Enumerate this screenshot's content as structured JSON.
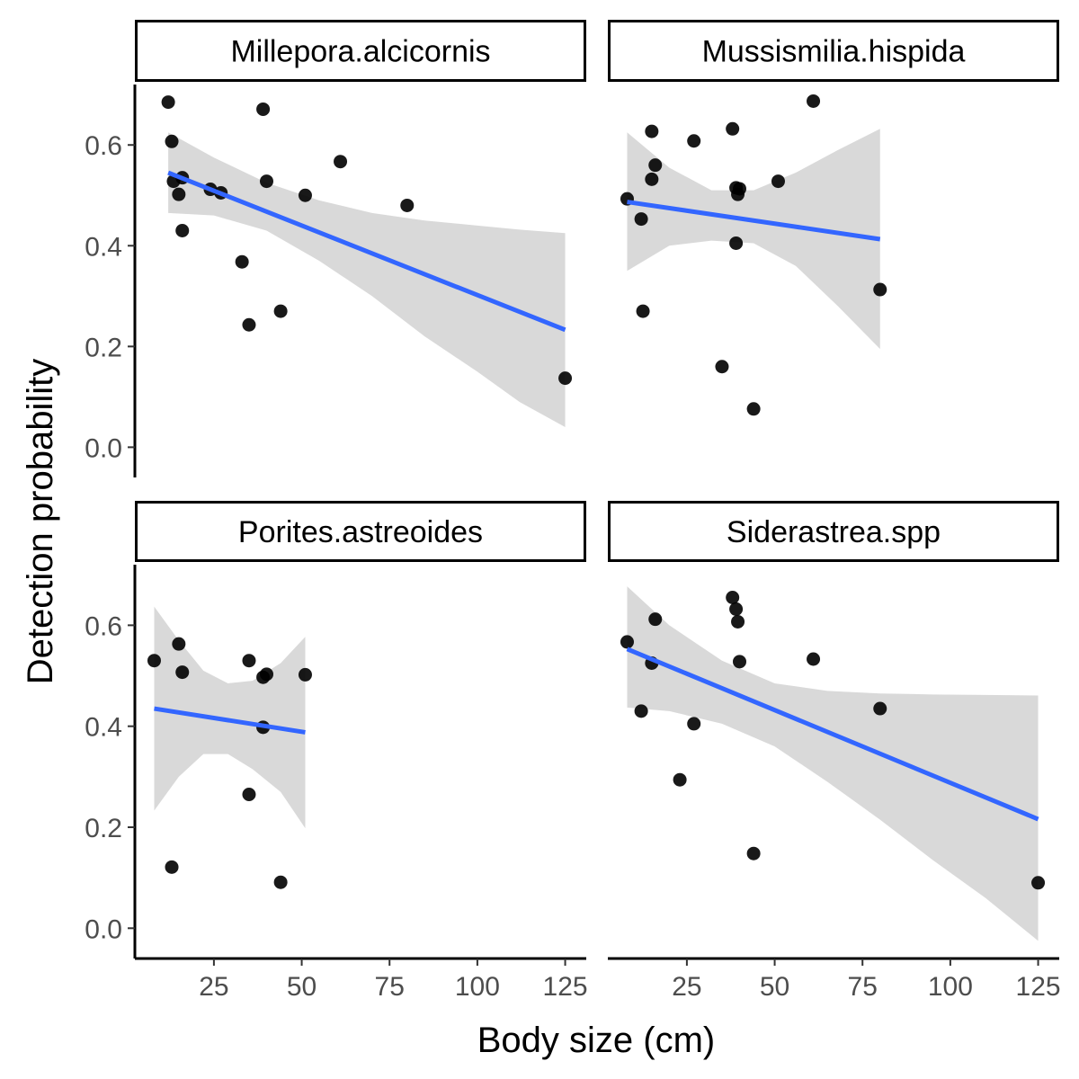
{
  "chart_data": {
    "type": "scatter",
    "layout": "facet-grid 2x2",
    "xlabel": "Body size (cm)",
    "ylabel": "Detection probability",
    "xlim": [
      2.5,
      131
    ],
    "ylim": [
      -0.06,
      0.72
    ],
    "x_ticks": [
      25,
      50,
      75,
      100,
      125
    ],
    "x_tick_labels": [
      "25",
      "50",
      "75",
      "100",
      "125"
    ],
    "y_ticks": [
      0.0,
      0.2,
      0.4,
      0.6
    ],
    "y_tick_labels": [
      "0.0",
      "0.2",
      "0.4",
      "0.6"
    ],
    "grid": false,
    "point_color": "#000000",
    "fit_color": "#3366FF",
    "ribbon_color": "#D9D9D9",
    "panels": [
      {
        "title": "Millepora.alcicornis",
        "points": [
          {
            "x": 12,
            "y": 0.685
          },
          {
            "x": 13,
            "y": 0.607
          },
          {
            "x": 13.5,
            "y": 0.528
          },
          {
            "x": 15,
            "y": 0.502
          },
          {
            "x": 16,
            "y": 0.535
          },
          {
            "x": 16,
            "y": 0.43
          },
          {
            "x": 24,
            "y": 0.512
          },
          {
            "x": 27,
            "y": 0.505
          },
          {
            "x": 33,
            "y": 0.368
          },
          {
            "x": 35,
            "y": 0.243
          },
          {
            "x": 39,
            "y": 0.671
          },
          {
            "x": 40,
            "y": 0.528
          },
          {
            "x": 44,
            "y": 0.27
          },
          {
            "x": 51,
            "y": 0.5
          },
          {
            "x": 61,
            "y": 0.567
          },
          {
            "x": 80,
            "y": 0.48
          },
          {
            "x": 125,
            "y": 0.137
          }
        ],
        "fit": {
          "x": [
            12,
            125
          ],
          "y": [
            0.545,
            0.233
          ]
        },
        "ribbon": [
          {
            "x": 12,
            "lo": 0.465,
            "hi": 0.625
          },
          {
            "x": 25,
            "lo": 0.46,
            "hi": 0.575
          },
          {
            "x": 40,
            "lo": 0.43,
            "hi": 0.525
          },
          {
            "x": 55,
            "lo": 0.37,
            "hi": 0.49
          },
          {
            "x": 70,
            "lo": 0.3,
            "hi": 0.465
          },
          {
            "x": 85,
            "lo": 0.22,
            "hi": 0.45
          },
          {
            "x": 100,
            "lo": 0.15,
            "hi": 0.44
          },
          {
            "x": 112,
            "lo": 0.09,
            "hi": 0.432
          },
          {
            "x": 125,
            "lo": 0.04,
            "hi": 0.425
          }
        ]
      },
      {
        "title": "Mussismilia.hispida",
        "points": [
          {
            "x": 8,
            "y": 0.493
          },
          {
            "x": 12,
            "y": 0.453
          },
          {
            "x": 12.5,
            "y": 0.27
          },
          {
            "x": 15,
            "y": 0.627
          },
          {
            "x": 15,
            "y": 0.532
          },
          {
            "x": 16,
            "y": 0.56
          },
          {
            "x": 27,
            "y": 0.608
          },
          {
            "x": 35,
            "y": 0.16
          },
          {
            "x": 38,
            "y": 0.632
          },
          {
            "x": 39,
            "y": 0.515
          },
          {
            "x": 39,
            "y": 0.405
          },
          {
            "x": 39.5,
            "y": 0.502
          },
          {
            "x": 40,
            "y": 0.513
          },
          {
            "x": 44,
            "y": 0.076
          },
          {
            "x": 51,
            "y": 0.528
          },
          {
            "x": 61,
            "y": 0.687
          },
          {
            "x": 80,
            "y": 0.313
          }
        ],
        "fit": {
          "x": [
            8,
            80
          ],
          "y": [
            0.487,
            0.413
          ]
        },
        "ribbon": [
          {
            "x": 8,
            "lo": 0.35,
            "hi": 0.625
          },
          {
            "x": 20,
            "lo": 0.4,
            "hi": 0.555
          },
          {
            "x": 32,
            "lo": 0.41,
            "hi": 0.51
          },
          {
            "x": 44,
            "lo": 0.405,
            "hi": 0.51
          },
          {
            "x": 56,
            "lo": 0.36,
            "hi": 0.545
          },
          {
            "x": 68,
            "lo": 0.28,
            "hi": 0.59
          },
          {
            "x": 80,
            "lo": 0.195,
            "hi": 0.632
          }
        ]
      },
      {
        "title": "Porites.astreoides",
        "points": [
          {
            "x": 8,
            "y": 0.53
          },
          {
            "x": 13,
            "y": 0.121
          },
          {
            "x": 15,
            "y": 0.563
          },
          {
            "x": 16,
            "y": 0.507
          },
          {
            "x": 35,
            "y": 0.53
          },
          {
            "x": 35,
            "y": 0.265
          },
          {
            "x": 39,
            "y": 0.497
          },
          {
            "x": 39,
            "y": 0.398
          },
          {
            "x": 40,
            "y": 0.503
          },
          {
            "x": 44,
            "y": 0.091
          },
          {
            "x": 51,
            "y": 0.502
          }
        ],
        "fit": {
          "x": [
            8,
            51
          ],
          "y": [
            0.435,
            0.388
          ]
        },
        "ribbon": [
          {
            "x": 8,
            "lo": 0.233,
            "hi": 0.637
          },
          {
            "x": 15,
            "lo": 0.3,
            "hi": 0.57
          },
          {
            "x": 22,
            "lo": 0.345,
            "hi": 0.51
          },
          {
            "x": 29,
            "lo": 0.345,
            "hi": 0.485
          },
          {
            "x": 36,
            "lo": 0.315,
            "hi": 0.49
          },
          {
            "x": 44,
            "lo": 0.27,
            "hi": 0.525
          },
          {
            "x": 51,
            "lo": 0.198,
            "hi": 0.577
          }
        ]
      },
      {
        "title": "Siderastrea.spp",
        "points": [
          {
            "x": 8,
            "y": 0.567
          },
          {
            "x": 12,
            "y": 0.43
          },
          {
            "x": 15,
            "y": 0.525
          },
          {
            "x": 16,
            "y": 0.612
          },
          {
            "x": 23,
            "y": 0.294
          },
          {
            "x": 27,
            "y": 0.405
          },
          {
            "x": 38,
            "y": 0.655
          },
          {
            "x": 39,
            "y": 0.632
          },
          {
            "x": 39.5,
            "y": 0.607
          },
          {
            "x": 40,
            "y": 0.528
          },
          {
            "x": 44,
            "y": 0.148
          },
          {
            "x": 61,
            "y": 0.533
          },
          {
            "x": 80,
            "y": 0.435
          },
          {
            "x": 125,
            "y": 0.09
          }
        ],
        "fit": {
          "x": [
            8,
            125
          ],
          "y": [
            0.553,
            0.216
          ]
        },
        "ribbon": [
          {
            "x": 8,
            "lo": 0.437,
            "hi": 0.677
          },
          {
            "x": 20,
            "lo": 0.43,
            "hi": 0.6
          },
          {
            "x": 35,
            "lo": 0.405,
            "hi": 0.53
          },
          {
            "x": 50,
            "lo": 0.36,
            "hi": 0.485
          },
          {
            "x": 65,
            "lo": 0.29,
            "hi": 0.47
          },
          {
            "x": 80,
            "lo": 0.215,
            "hi": 0.465
          },
          {
            "x": 95,
            "lo": 0.135,
            "hi": 0.463
          },
          {
            "x": 110,
            "lo": 0.06,
            "hi": 0.462
          },
          {
            "x": 125,
            "lo": -0.025,
            "hi": 0.461
          }
        ]
      }
    ]
  }
}
